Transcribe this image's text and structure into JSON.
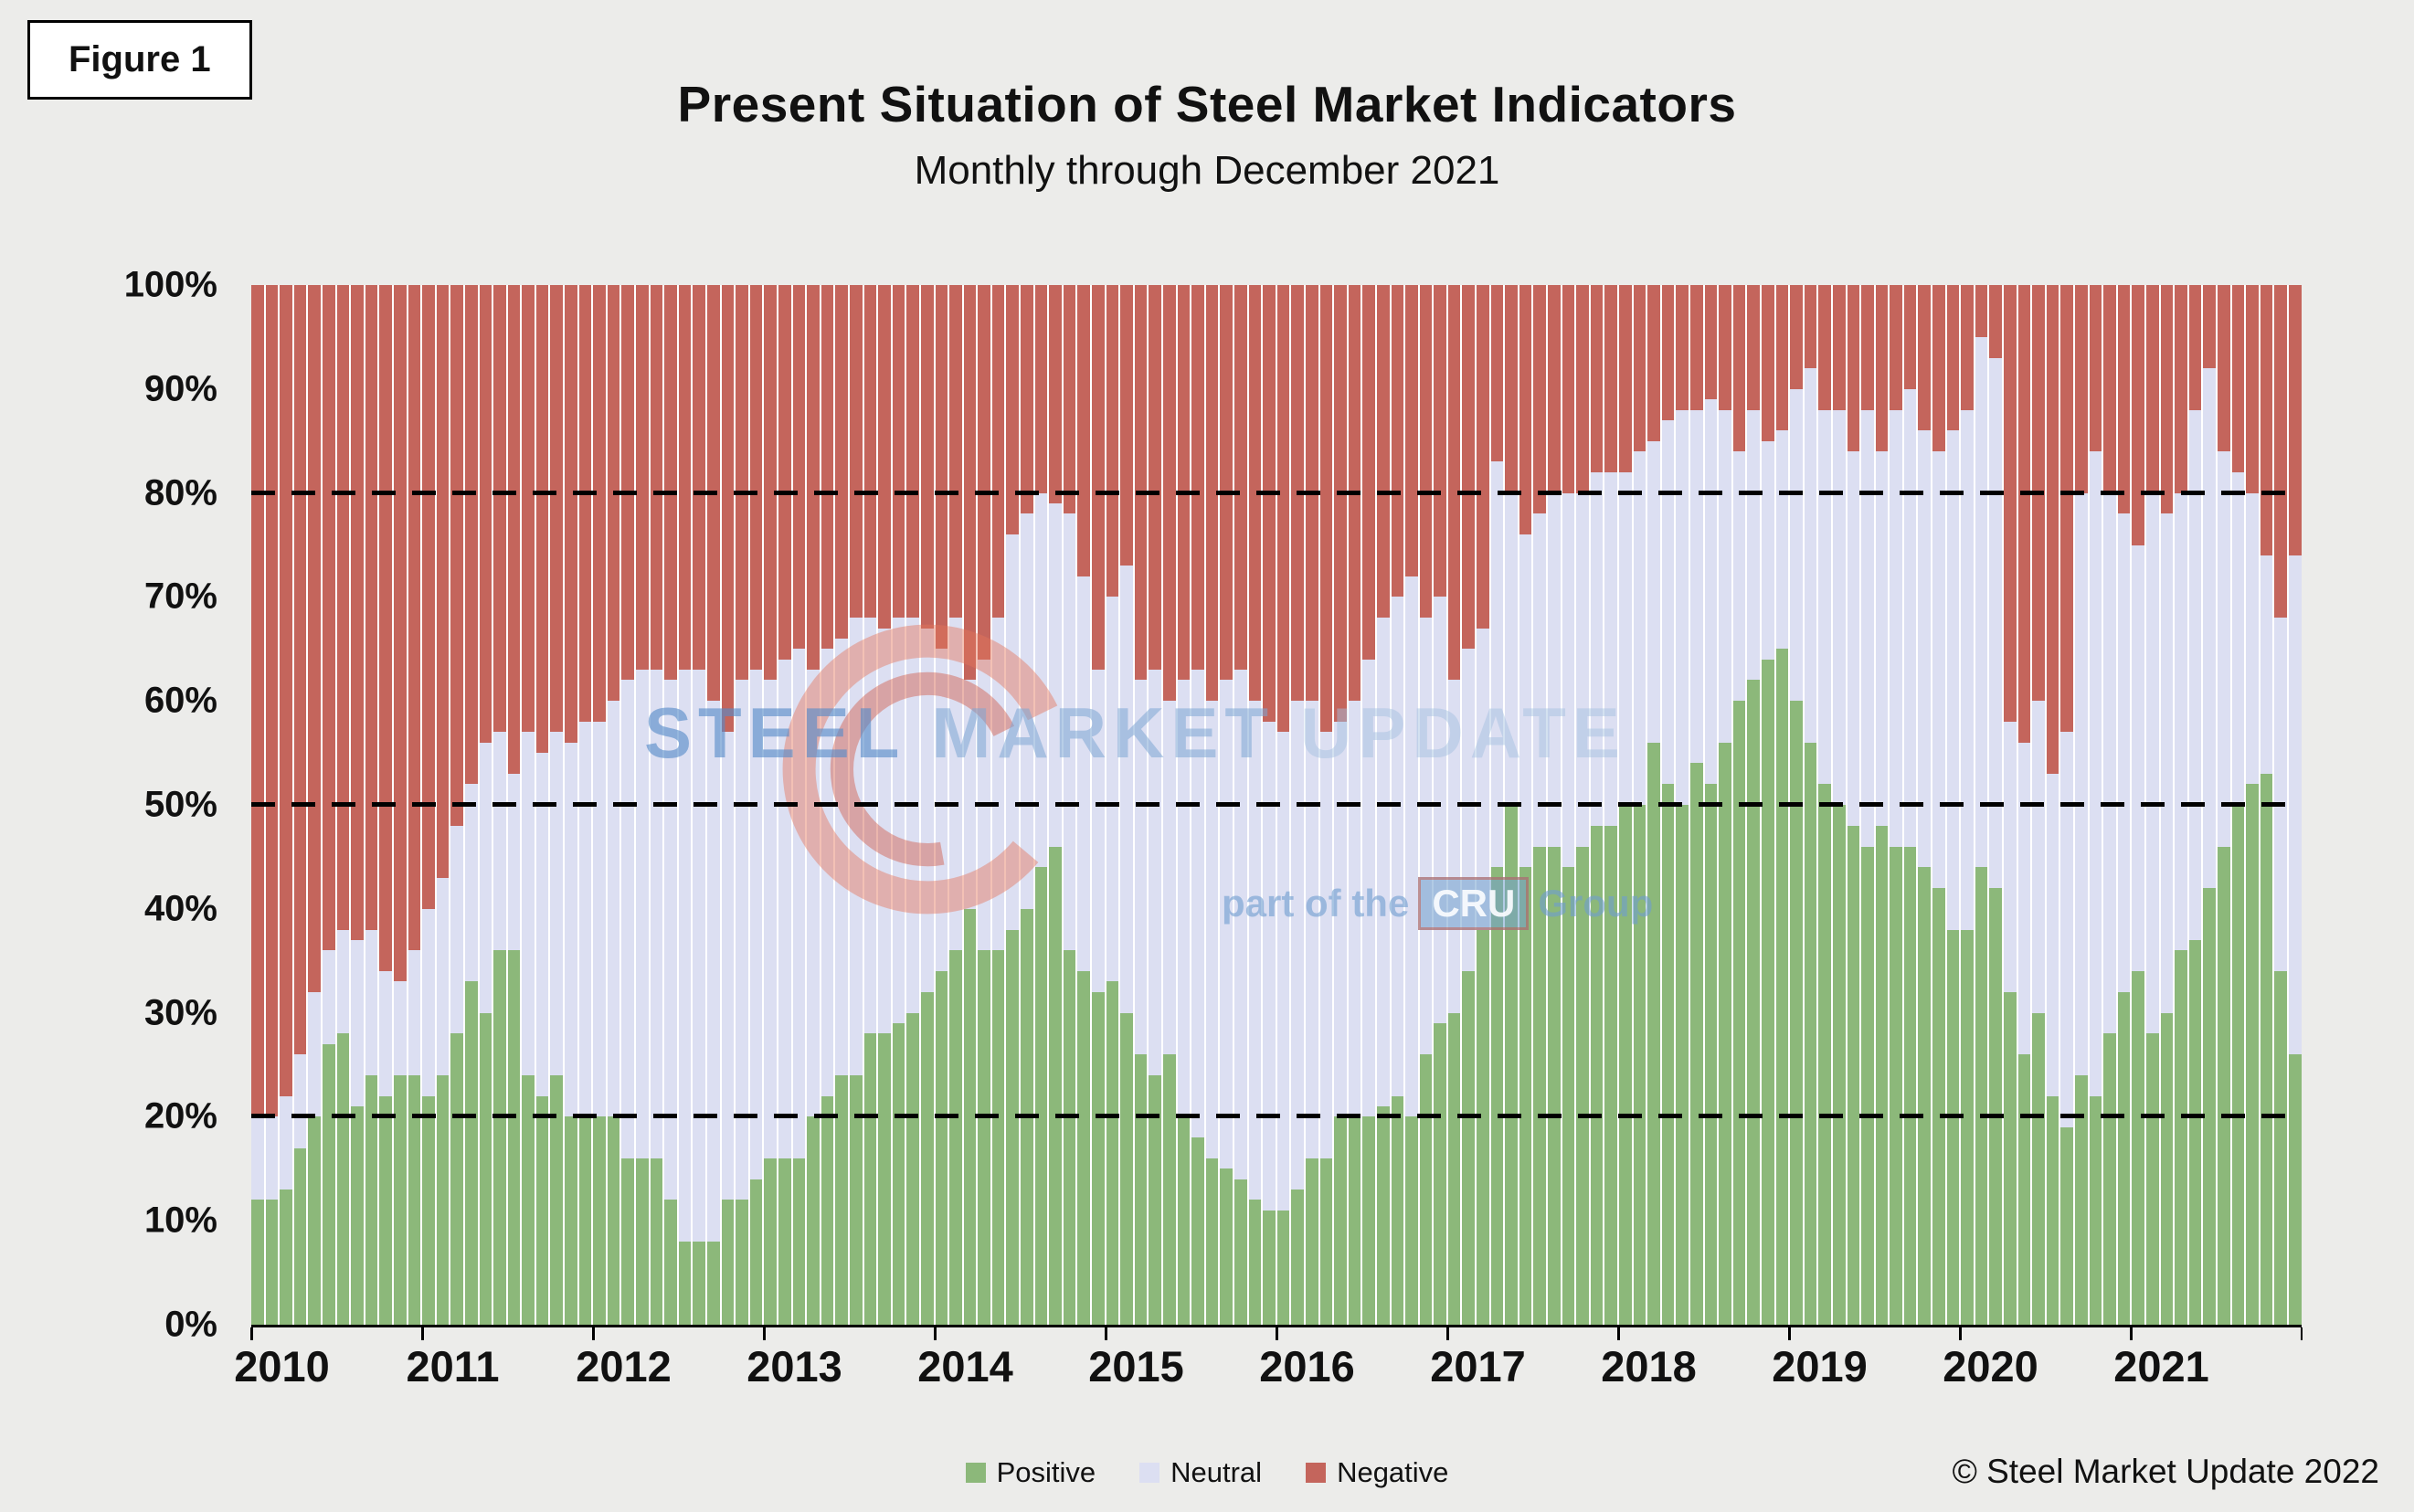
{
  "figure_label": "Figure 1",
  "title": "Present Situation of Steel Market Indicators",
  "subtitle": "Monthly through December 2021",
  "watermark": {
    "word1": "STEEL",
    "word2": "MARKET",
    "word3": "UPDATE",
    "tagline_prefix": "part of the",
    "tagline_cru": "CRU",
    "tagline_suffix": "Group"
  },
  "legend": [
    {
      "label": "Positive",
      "color": "#8CB87A"
    },
    {
      "label": "Neutral",
      "color": "#DCDFF2"
    },
    {
      "label": "Negative",
      "color": "#C4655C"
    }
  ],
  "copyright": "© Steel Market Update 2022",
  "chart_data": {
    "type": "bar",
    "stacked": true,
    "stacked_percent": true,
    "title": "Present Situation of Steel Market Indicators",
    "subtitle": "Monthly through December 2021",
    "x_unit": "month",
    "x_start": "2010-01",
    "x_end": "2021-12",
    "year_labels": [
      "2010",
      "2011",
      "2012",
      "2013",
      "2014",
      "2015",
      "2016",
      "2017",
      "2018",
      "2019",
      "2020",
      "2021"
    ],
    "y_ticks": [
      "0%",
      "10%",
      "20%",
      "30%",
      "40%",
      "50%",
      "60%",
      "70%",
      "80%",
      "90%",
      "100%"
    ],
    "ylim": [
      0,
      100
    ],
    "dashed_gridlines_pct": [
      20,
      50,
      80
    ],
    "legend_position": "bottom",
    "series": [
      {
        "name": "Positive",
        "color": "#8CB87A",
        "values": [
          12,
          12,
          13,
          17,
          20,
          27,
          28,
          21,
          24,
          22,
          24,
          24,
          22,
          24,
          28,
          33,
          30,
          36,
          36,
          24,
          22,
          24,
          20,
          20,
          20,
          20,
          16,
          16,
          16,
          12,
          8,
          8,
          8,
          12,
          12,
          14,
          16,
          16,
          16,
          20,
          22,
          24,
          24,
          28,
          28,
          29,
          30,
          32,
          34,
          36,
          40,
          36,
          36,
          38,
          40,
          44,
          46,
          36,
          34,
          32,
          33,
          30,
          26,
          24,
          26,
          20,
          18,
          16,
          15,
          14,
          12,
          11,
          11,
          13,
          16,
          16,
          20,
          20,
          20,
          21,
          22,
          20,
          26,
          29,
          30,
          34,
          38,
          44,
          50,
          44,
          46,
          46,
          44,
          46,
          48,
          48,
          50,
          50,
          56,
          52,
          50,
          54,
          52,
          56,
          60,
          62,
          64,
          65,
          60,
          56,
          52,
          50,
          48,
          46,
          48,
          46,
          46,
          44,
          42,
          38,
          38,
          44,
          42,
          32,
          26,
          30,
          22,
          19,
          24,
          22,
          28,
          32,
          34,
          28,
          30,
          36,
          37,
          42,
          46,
          50,
          52,
          53,
          34,
          26
        ]
      },
      {
        "name": "Neutral",
        "color": "#DCDFF2",
        "values": [
          8,
          8,
          9,
          9,
          12,
          9,
          10,
          16,
          14,
          12,
          9,
          12,
          18,
          19,
          20,
          19,
          26,
          21,
          17,
          33,
          33,
          33,
          36,
          38,
          38,
          40,
          46,
          47,
          47,
          50,
          55,
          55,
          52,
          45,
          50,
          49,
          46,
          48,
          49,
          43,
          43,
          42,
          44,
          40,
          39,
          39,
          38,
          35,
          31,
          32,
          22,
          28,
          32,
          38,
          38,
          36,
          33,
          42,
          38,
          31,
          37,
          43,
          36,
          39,
          34,
          42,
          45,
          44,
          47,
          49,
          48,
          47,
          46,
          47,
          44,
          41,
          38,
          40,
          44,
          47,
          48,
          52,
          42,
          41,
          32,
          31,
          29,
          39,
          30,
          32,
          32,
          34,
          36,
          34,
          34,
          34,
          32,
          34,
          29,
          35,
          38,
          34,
          37,
          32,
          24,
          26,
          21,
          21,
          30,
          36,
          36,
          38,
          36,
          42,
          36,
          42,
          44,
          42,
          42,
          48,
          50,
          51,
          51,
          26,
          30,
          30,
          31,
          38,
          56,
          62,
          52,
          46,
          41,
          52,
          48,
          44,
          51,
          50,
          38,
          32,
          28,
          21,
          34,
          48
        ]
      },
      {
        "name": "Negative",
        "color": "#C4655C",
        "values": [
          80,
          80,
          78,
          74,
          68,
          64,
          62,
          63,
          62,
          66,
          67,
          64,
          60,
          57,
          52,
          48,
          44,
          43,
          47,
          43,
          45,
          43,
          44,
          42,
          42,
          40,
          38,
          37,
          37,
          38,
          37,
          37,
          40,
          43,
          38,
          37,
          38,
          36,
          35,
          37,
          35,
          34,
          32,
          32,
          33,
          32,
          32,
          33,
          35,
          32,
          38,
          36,
          32,
          24,
          22,
          20,
          21,
          22,
          28,
          37,
          30,
          27,
          38,
          37,
          40,
          38,
          37,
          40,
          38,
          37,
          40,
          42,
          43,
          40,
          40,
          43,
          42,
          40,
          36,
          32,
          30,
          28,
          32,
          30,
          38,
          35,
          33,
          17,
          20,
          24,
          22,
          20,
          20,
          20,
          18,
          18,
          18,
          16,
          15,
          13,
          12,
          12,
          11,
          12,
          16,
          12,
          15,
          14,
          10,
          8,
          12,
          12,
          16,
          12,
          16,
          12,
          10,
          14,
          16,
          14,
          12,
          5,
          7,
          42,
          44,
          40,
          47,
          43,
          20,
          16,
          20,
          22,
          25,
          20,
          22,
          20,
          12,
          8,
          16,
          18,
          20,
          26,
          32,
          26
        ]
      }
    ]
  }
}
